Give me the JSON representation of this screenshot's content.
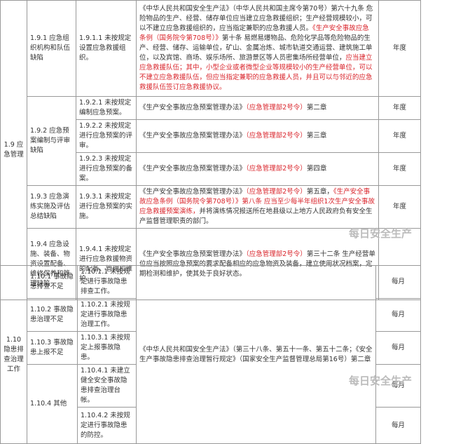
{
  "table1": {
    "section": "1.9 应急管理",
    "rows": [
      {
        "sub": "1.9.1 应急组织机构和队伍缺陷",
        "items": [
          {
            "item": "1.9.1.1 未按规定设置应急救援组织。",
            "basis": [
              {
                "text": "《中华人民共和国安全生产法》（中华人民共和国主席令第70号）第六十九条 危险物品的生产、经营、储存单位应当建立应急救援组织；生产经营规模较小，可以不建立应急救援组织的，应当指定兼职的应急救援人员。",
                "color": "#333333"
              },
              {
                "text": "《生产安全事故应急条例（国务院令第708号）》",
                "color": "#d9232a"
              },
              {
                "text": "第十条 易燃易爆物品、危险化学品等危险物品的生产、经营、储存、运输单位，矿山、金属冶炼、城市轨道交通运营、建筑施工单位，以及宾馆、商场、娱乐场所、旅游景区等人员密集场所经营单位，",
                "color": "#333333"
              },
              {
                "text": "应当建立应急救援队伍；其中，小型企业或者微型企业等规模较小的生产经营单位，可以不建立应急救援队伍，但应当指定兼职的应急救援人员，并且可以与邻近的应急救援队伍签订应急救援协议。",
                "color": "#d9232a"
              }
            ],
            "freq": "年度"
          }
        ]
      },
      {
        "sub": "1.9.2 应急预案编制与评审缺陷",
        "items": [
          {
            "item": "1.9.2.1 未按规定编制应急预案。",
            "basis": [
              {
                "text": "《生产安全事故应急预案管理办法》",
                "color": "#333333"
              },
              {
                "text": "（应急管理部2号令）",
                "color": "#d9232a"
              },
              {
                "text": "第二章",
                "color": "#333333"
              }
            ],
            "freq": "年度"
          },
          {
            "item": "1.9.2.2 未按规定进行应急预案的评审。",
            "basis": [
              {
                "text": "《生产安全事故应急预案管理办法》",
                "color": "#333333"
              },
              {
                "text": "（应急管理部2号令）",
                "color": "#d9232a"
              },
              {
                "text": "第三章",
                "color": "#333333"
              }
            ],
            "freq": "年度"
          },
          {
            "item": "1.9.2.3 未按规定进行应急预案的备案。",
            "basis": [
              {
                "text": "《生产安全事故应急预案管理办法》",
                "color": "#333333"
              },
              {
                "text": "（应急管理部2号令）",
                "color": "#d9232a"
              },
              {
                "text": "第四章",
                "color": "#333333"
              }
            ],
            "freq": "年度"
          }
        ]
      },
      {
        "sub": "1.9.3 应急演练实施及评估总结缺陷",
        "items": [
          {
            "item": "1.9.3.1 未按规定进行应急预案的实施。",
            "basis": [
              {
                "text": "《生产安全事故应急预案管理办法》",
                "color": "#333333"
              },
              {
                "text": "（应急管理部2号令）",
                "color": "#d9232a"
              },
              {
                "text": "第五章，",
                "color": "#333333"
              },
              {
                "text": "《生产安全事故应急条例（国务院令第708号）》第八条 应当至少每半年组织1次生产安全事故应急救援预案演练，",
                "color": "#d9232a"
              },
              {
                "text": "并将演练情况报送所在地县级以上地方人民政府负有安全生产监督管理职责的部门。",
                "color": "#333333"
              }
            ],
            "freq": "年度"
          }
        ]
      },
      {
        "sub": "1.9.4 应急设施、装备、物资设置配备、维修保养和管理缺陷",
        "items": [
          {
            "item": "1.9.4.1 未按规定进行应急救援物资的配备、管理和维护。",
            "basis": [
              {
                "text": "《生产安全事故应急预案管理办法》",
                "color": "#333333"
              },
              {
                "text": "（应急管理部2号令）",
                "color": "#d9232a"
              },
              {
                "text": "第三十二条 生产经营单位应当按照应急预案的要求配备相应的应急物资及装备，建立使用状况档案，定期检测和维护，使其处于良好状态。",
                "color": "#333333"
              }
            ]
          }
        ]
      }
    ]
  },
  "table2": {
    "section": "1.10 隐患排查治理工作",
    "basis": "《中华人民共和国安全生产法》（第三十八条、第五十一条、第五十二条；《安全生产事故隐患排查治理暂行规定》（国家安全生产监督管理总局第16号）第二章",
    "rows": [
      {
        "sub": "1.10.1 事故隐患排查不足",
        "items": [
          {
            "item": "1.10.1.1 未按规定进行事故隐患排查工作。",
            "freq": "每月"
          }
        ]
      },
      {
        "sub": "1.10.2 事故隐患治理不足",
        "items": [
          {
            "item": "1.10.2.1 未按规定进行事故隐患治理工作。",
            "freq": "每月"
          }
        ]
      },
      {
        "sub": "1.10.3 事故隐患上报不足",
        "items": [
          {
            "item": "1.10.3.1 未按规定上报事故隐患。",
            "freq": "每月"
          }
        ]
      },
      {
        "sub": "1.10.4 其他",
        "items": [
          {
            "item": "1.10.4.1 未建立健全安全事故隐患排查治理台帐。",
            "freq": "每月"
          },
          {
            "item": "1.10.4.2 未按规定进行事故隐患的防控。",
            "freq": "每月"
          }
        ]
      }
    ]
  },
  "watermark": "每日安全生产"
}
